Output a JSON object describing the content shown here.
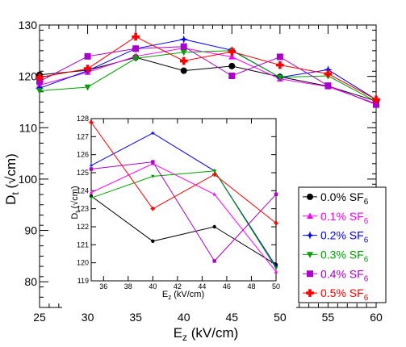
{
  "chart_data": [
    {
      "type": "line",
      "title": "",
      "xlabel_main": "E",
      "xlabel_sub": "z",
      "xlabel_rest": " (kV/cm)",
      "ylabel_main": "D",
      "ylabel_sub": "t",
      "ylabel_rest": " (√cm)",
      "xlim": [
        25,
        60
      ],
      "ylim": [
        75,
        130
      ],
      "x_ticks": [
        25,
        30,
        35,
        40,
        45,
        50,
        55,
        60
      ],
      "y_ticks": [
        80,
        90,
        100,
        110,
        120,
        130
      ],
      "grid": false,
      "legend_position": "right",
      "series": [
        {
          "name": "0.0% SF",
          "name_sub": "6",
          "color": "#000000",
          "marker": "circle",
          "x": [
            25,
            30,
            35,
            40,
            45,
            50,
            55,
            60
          ],
          "y": [
            120.3,
            121.2,
            123.7,
            121.1,
            122.0,
            119.9,
            118.1,
            115.2
          ]
        },
        {
          "name": "0.1% SF",
          "name_sub": "6",
          "color": "#ff00ff",
          "marker": "triangle",
          "x": [
            25,
            30,
            35,
            40,
            45,
            50,
            55,
            60
          ],
          "y": [
            118.3,
            120.8,
            123.9,
            125.5,
            123.8,
            119.5,
            118.0,
            114.7
          ]
        },
        {
          "name": "0.2% SF",
          "name_sub": "6",
          "color": "#0000ff",
          "marker": "star",
          "x": [
            25,
            30,
            35,
            40,
            45,
            50,
            55,
            60
          ],
          "y": [
            117.7,
            121.1,
            125.4,
            127.2,
            125.1,
            119.8,
            121.3,
            115.5
          ]
        },
        {
          "name": "0.3% SF",
          "name_sub": "6",
          "color": "#00a000",
          "marker": "triangle-down",
          "x": [
            25,
            30,
            35,
            40,
            45,
            50,
            55,
            60
          ],
          "y": [
            117.2,
            117.9,
            123.5,
            124.7,
            125.0,
            119.8,
            120.1,
            115.1
          ]
        },
        {
          "name": "0.4% SF",
          "name_sub": "6",
          "color": "#aa00cc",
          "marker": "square",
          "x": [
            25,
            30,
            35,
            40,
            45,
            50,
            55,
            60
          ],
          "y": [
            119.0,
            123.9,
            125.4,
            125.8,
            120.1,
            123.8,
            118.2,
            114.5
          ]
        },
        {
          "name": "0.5% SF",
          "name_sub": "6",
          "color": "#ff0000",
          "marker": "cross",
          "x": [
            25,
            30,
            35,
            40,
            45,
            50,
            55,
            60
          ],
          "y": [
            119.8,
            121.5,
            127.7,
            123.0,
            124.8,
            122.2,
            120.5,
            115.5
          ]
        }
      ]
    },
    {
      "type": "line",
      "title": "",
      "xlabel_main": "E",
      "xlabel_sub": "z",
      "xlabel_rest": " (kV/cm)",
      "ylabel_main": "D",
      "ylabel_sub": "t",
      "ylabel_rest": " (√cm)",
      "xlim": [
        35,
        50
      ],
      "ylim": [
        119,
        128
      ],
      "x_ticks": [
        36,
        38,
        40,
        42,
        44,
        46,
        48,
        50
      ],
      "y_ticks": [
        119,
        120,
        121,
        122,
        123,
        124,
        125,
        126,
        127,
        128
      ],
      "series": [
        {
          "color": "#000000",
          "x": [
            35,
            40,
            45,
            50
          ],
          "y": [
            123.7,
            121.2,
            122.0,
            119.9
          ]
        },
        {
          "color": "#ff00ff",
          "x": [
            35,
            40,
            45,
            50
          ],
          "y": [
            123.9,
            125.5,
            123.8,
            119.5
          ]
        },
        {
          "color": "#0000ff",
          "x": [
            35,
            40,
            45,
            50
          ],
          "y": [
            125.4,
            127.2,
            125.1,
            119.8
          ]
        },
        {
          "color": "#00a000",
          "x": [
            35,
            40,
            45,
            50
          ],
          "y": [
            123.6,
            124.8,
            125.1,
            119.7
          ]
        },
        {
          "color": "#aa00cc",
          "x": [
            35,
            40,
            45,
            50
          ],
          "y": [
            125.2,
            125.6,
            120.1,
            123.8
          ]
        },
        {
          "color": "#ff0000",
          "x": [
            35,
            40,
            45,
            50
          ],
          "y": [
            127.8,
            123.0,
            124.9,
            122.2
          ]
        }
      ]
    }
  ]
}
